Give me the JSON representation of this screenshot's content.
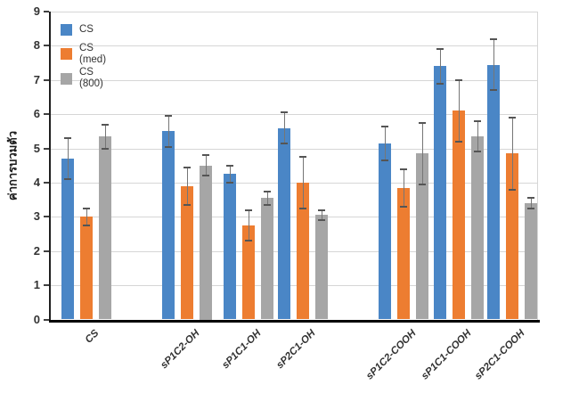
{
  "chart_data": {
    "type": "bar",
    "title": "",
    "xlabel": "",
    "ylabel": "ค่าการบวมตัว",
    "ylim": [
      0,
      9
    ],
    "ytick_step": 1,
    "grid": true,
    "legend_position": "top-left-inside",
    "categories": [
      "CS",
      "sP1C2-OH",
      "sP1C1-OH",
      "sP2C1-OH",
      "sP1C2-COOH",
      "sP1C1-COOH",
      "sP2C1-COOH"
    ],
    "series": [
      {
        "name": "CS",
        "color": "#4a86c6",
        "values": [
          4.7,
          5.5,
          4.25,
          5.6,
          5.15,
          7.4,
          7.45
        ],
        "errors": [
          0.6,
          0.45,
          0.25,
          0.45,
          0.5,
          0.5,
          0.75
        ]
      },
      {
        "name": "CS (med)",
        "color": "#ed7d31",
        "values": [
          3.0,
          3.9,
          2.75,
          4.0,
          3.85,
          6.1,
          4.85
        ],
        "errors": [
          0.25,
          0.55,
          0.45,
          0.75,
          0.55,
          0.9,
          1.05
        ]
      },
      {
        "name": "CS (800)",
        "color": "#a6a6a6",
        "values": [
          5.35,
          4.5,
          3.55,
          3.05,
          4.85,
          5.35,
          3.4
        ],
        "errors": [
          0.35,
          0.3,
          0.2,
          0.15,
          0.9,
          0.45,
          0.15
        ]
      }
    ],
    "group_centers_frac": [
      0.074,
      0.28,
      0.407,
      0.518,
      0.726,
      0.839,
      0.949
    ],
    "colors": {
      "gridline": "#d6d6d6",
      "axis": "#000000",
      "tick_text": "#333333",
      "error_bar": "#767676"
    }
  }
}
